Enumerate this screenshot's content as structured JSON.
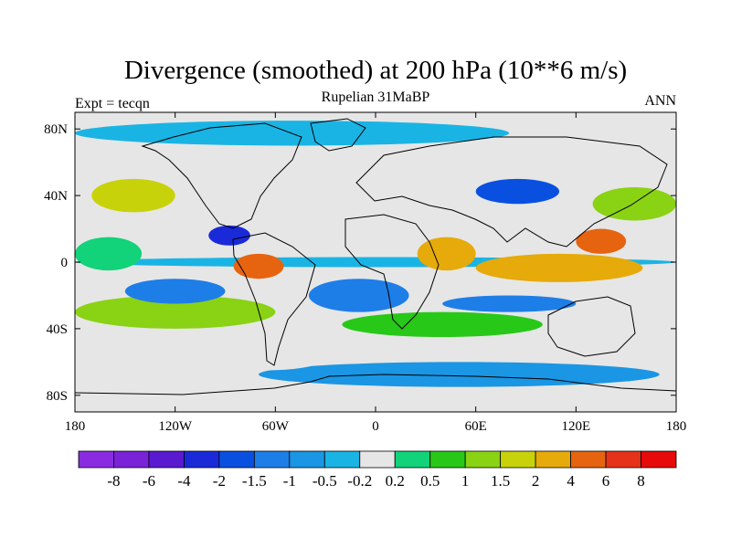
{
  "chart_data": {
    "type": "heatmap",
    "title": "Divergence (smoothed) at 200 hPa (10**6 m/s)",
    "subtitle_left": "Expt = tecqn",
    "subtitle_center": "Rupelian  31MaBP",
    "subtitle_right": "ANN",
    "x_ticks": [
      "180",
      "120W",
      "60W",
      "0",
      "60E",
      "120E",
      "180"
    ],
    "y_ticks": [
      "80N",
      "40N",
      "0",
      "40S",
      "80S"
    ],
    "xlim": [
      -180,
      180
    ],
    "ylim": [
      -90,
      90
    ],
    "x_tick_values": [
      -180,
      -120,
      -60,
      0,
      60,
      120,
      180
    ],
    "y_tick_values": [
      80,
      40,
      0,
      -40,
      -80
    ],
    "colorbar": {
      "labels": [
        "-8",
        "-6",
        "-4",
        "-2",
        "-1.5",
        "-1",
        "-0.5",
        "-0.2",
        "0.2",
        "0.5",
        "1",
        "1.5",
        "2",
        "4",
        "6",
        "8"
      ],
      "colors": [
        "#8a2be2",
        "#7a22d8",
        "#5a1ad0",
        "#1a2ad8",
        "#0a50e0",
        "#1e7ee8",
        "#1a96e4",
        "#1ab4e4",
        "#e6e6e6",
        "#12d27a",
        "#28c818",
        "#8ad214",
        "#c8d20a",
        "#e6aa0a",
        "#e66410",
        "#e63218",
        "#e60a0a"
      ]
    },
    "regions": [
      {
        "lon": [
          -180,
          180
        ],
        "lat": [
          -3,
          3
        ],
        "level": "#1ab4e4"
      },
      {
        "lon": [
          -100,
          -75
        ],
        "lat": [
          10,
          22
        ],
        "level": "#1a2ad8"
      },
      {
        "lon": [
          -85,
          -55
        ],
        "lat": [
          -10,
          5
        ],
        "level": "#e66410"
      },
      {
        "lon": [
          25,
          60
        ],
        "lat": [
          -5,
          15
        ],
        "level": "#e6aa0a"
      },
      {
        "lon": [
          60,
          160
        ],
        "lat": [
          -12,
          5
        ],
        "level": "#e6aa0a"
      },
      {
        "lon": [
          120,
          150
        ],
        "lat": [
          5,
          20
        ],
        "level": "#e66410"
      },
      {
        "lon": [
          -170,
          -120
        ],
        "lat": [
          30,
          50
        ],
        "level": "#c8d20a"
      },
      {
        "lon": [
          130,
          180
        ],
        "lat": [
          25,
          45
        ],
        "level": "#8ad214"
      },
      {
        "lon": [
          -180,
          -60
        ],
        "lat": [
          -40,
          -20
        ],
        "level": "#8ad214"
      },
      {
        "lon": [
          -20,
          100
        ],
        "lat": [
          -45,
          -30
        ],
        "level": "#28c818"
      },
      {
        "lon": [
          -150,
          -90
        ],
        "lat": [
          -25,
          -10
        ],
        "level": "#1e7ee8"
      },
      {
        "lon": [
          -40,
          20
        ],
        "lat": [
          -30,
          -10
        ],
        "level": "#1e7ee8"
      },
      {
        "lon": [
          40,
          120
        ],
        "lat": [
          -30,
          -20
        ],
        "level": "#1e7ee8"
      },
      {
        "lon": [
          -70,
          170
        ],
        "lat": [
          -75,
          -60
        ],
        "level": "#1a96e4"
      },
      {
        "lon": [
          -180,
          80
        ],
        "lat": [
          70,
          85
        ],
        "level": "#1ab4e4"
      },
      {
        "lon": [
          60,
          110
        ],
        "lat": [
          35,
          50
        ],
        "level": "#0a50e0"
      },
      {
        "lon": [
          -100,
          -30
        ],
        "lat": [
          -65,
          -50
        ],
        "level": "#e6e6e6"
      },
      {
        "lon": [
          -180,
          -140
        ],
        "lat": [
          -5,
          15
        ],
        "level": "#12d27a"
      }
    ]
  }
}
